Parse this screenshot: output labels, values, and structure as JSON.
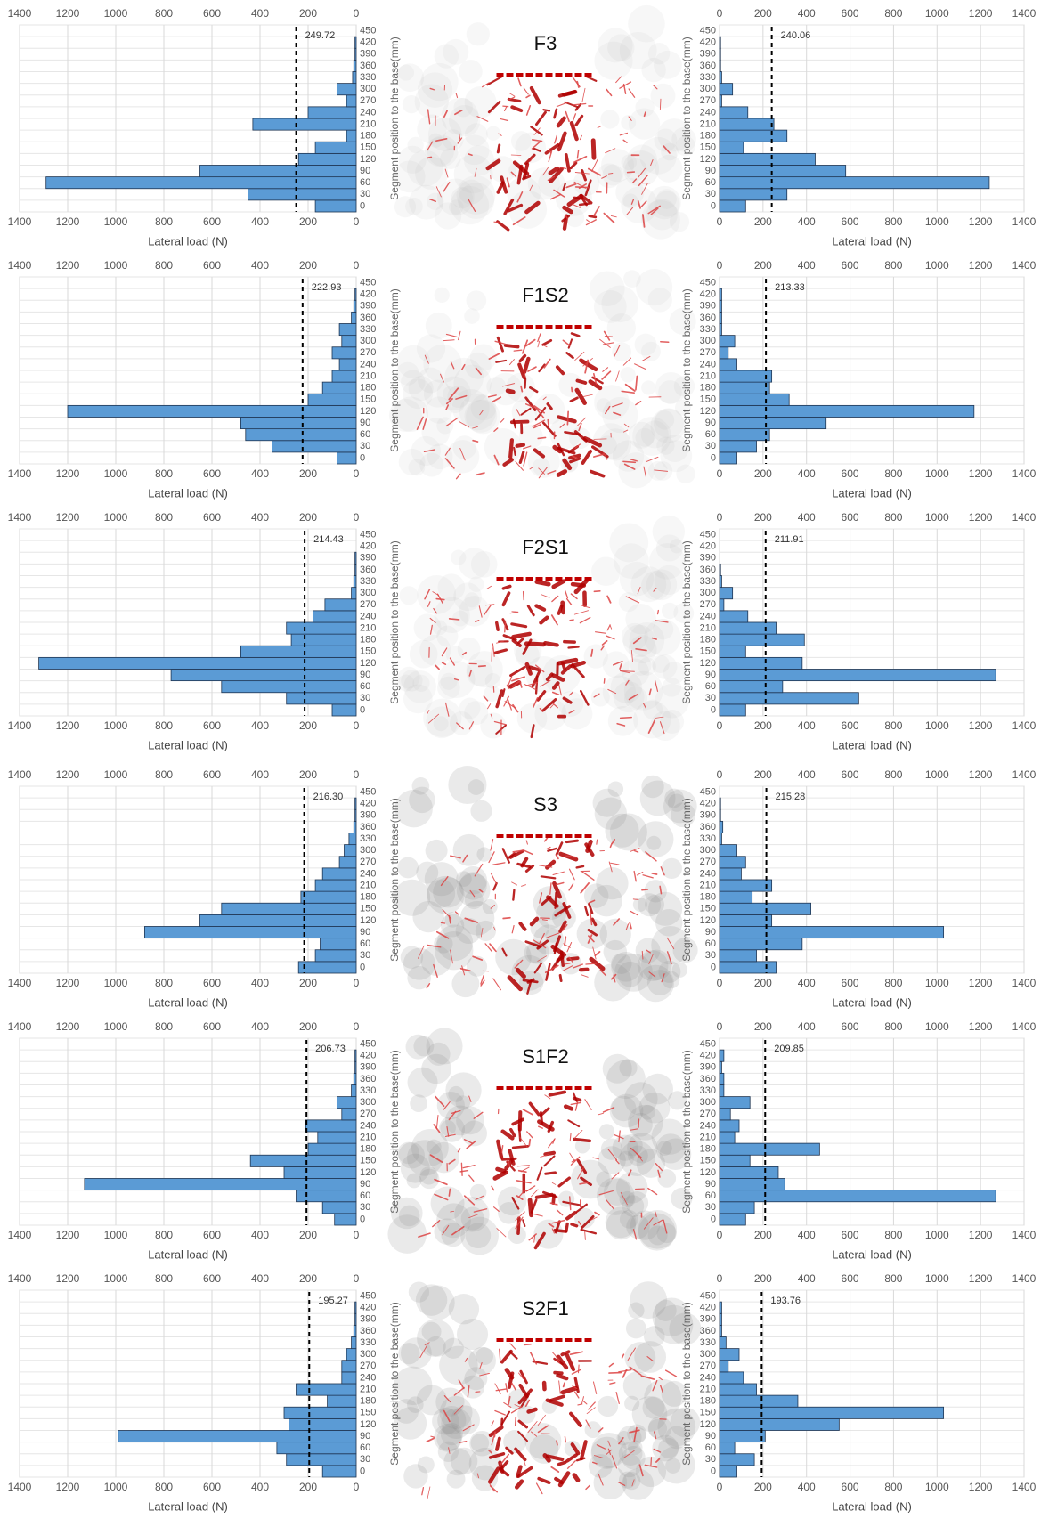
{
  "panels": [
    "F3",
    "F1S2",
    "F2S1",
    "S3",
    "S1F2",
    "S2F1"
  ],
  "chart_data": [
    {
      "type": "bar",
      "orientation": "horizontal",
      "reversed": true,
      "color": "#5b9bd5",
      "grid": true,
      "categories": [
        0,
        30,
        60,
        90,
        120,
        150,
        180,
        210,
        240,
        270,
        300,
        330,
        360,
        390,
        420,
        450
      ],
      "values": [
        170,
        450,
        1290,
        650,
        240,
        170,
        40,
        430,
        200,
        40,
        80,
        15,
        10,
        5,
        5,
        0
      ],
      "xlim": [
        0,
        1400
      ],
      "xticks": [
        0,
        200,
        400,
        600,
        800,
        1000,
        1200,
        1400
      ],
      "xlabel": "Lateral load (N)",
      "ylabel": "Segment position to the base(mm)",
      "mean_line": 249.72
    },
    {
      "type": "bar",
      "orientation": "horizontal",
      "reversed": false,
      "color": "#5b9bd5",
      "grid": true,
      "categories": [
        0,
        30,
        60,
        90,
        120,
        150,
        180,
        210,
        240,
        270,
        300,
        330,
        360,
        390,
        420,
        450
      ],
      "values": [
        120,
        310,
        1240,
        580,
        440,
        110,
        310,
        250,
        130,
        10,
        60,
        10,
        5,
        5,
        5,
        0
      ],
      "xlim": [
        0,
        1400
      ],
      "xticks": [
        0,
        200,
        400,
        600,
        800,
        1000,
        1200,
        1400
      ],
      "xlabel": "Lateral load (N)",
      "ylabel": "Segment position to the base(mm)",
      "mean_line": 240.06
    },
    {
      "type": "bar",
      "orientation": "horizontal",
      "reversed": true,
      "color": "#5b9bd5",
      "grid": true,
      "categories": [
        0,
        30,
        60,
        90,
        120,
        150,
        180,
        210,
        240,
        270,
        300,
        330,
        360,
        390,
        420,
        450
      ],
      "values": [
        80,
        350,
        460,
        480,
        1200,
        200,
        140,
        100,
        70,
        100,
        60,
        70,
        20,
        10,
        5,
        0
      ],
      "xlim": [
        0,
        1400
      ],
      "xticks": [
        0,
        200,
        400,
        600,
        800,
        1000,
        1200,
        1400
      ],
      "xlabel": "Lateral load (N)",
      "ylabel": "Segment position to the base(mm)",
      "mean_line": 222.93
    },
    {
      "type": "bar",
      "orientation": "horizontal",
      "reversed": false,
      "color": "#5b9bd5",
      "grid": true,
      "categories": [
        0,
        30,
        60,
        90,
        120,
        150,
        180,
        210,
        240,
        270,
        300,
        330,
        360,
        390,
        420,
        450
      ],
      "values": [
        80,
        170,
        230,
        490,
        1170,
        320,
        230,
        240,
        80,
        40,
        70,
        10,
        10,
        10,
        10,
        0
      ],
      "xlim": [
        0,
        1400
      ],
      "xticks": [
        0,
        200,
        400,
        600,
        800,
        1000,
        1200,
        1400
      ],
      "xlabel": "Lateral load (N)",
      "ylabel": "Segment position to the base(mm)",
      "mean_line": 213.33
    },
    {
      "type": "bar",
      "orientation": "horizontal",
      "reversed": true,
      "color": "#5b9bd5",
      "grid": true,
      "categories": [
        0,
        30,
        60,
        90,
        120,
        150,
        180,
        210,
        240,
        270,
        300,
        330,
        360,
        390,
        420,
        450
      ],
      "values": [
        100,
        290,
        560,
        770,
        1320,
        480,
        270,
        290,
        180,
        130,
        20,
        10,
        5,
        5,
        0,
        0
      ],
      "xlim": [
        0,
        1400
      ],
      "xticks": [
        0,
        200,
        400,
        600,
        800,
        1000,
        1200,
        1400
      ],
      "xlabel": "Lateral load (N)",
      "ylabel": "Segment position to the base(mm)",
      "mean_line": 214.43
    },
    {
      "type": "bar",
      "orientation": "horizontal",
      "reversed": false,
      "color": "#5b9bd5",
      "grid": true,
      "categories": [
        0,
        30,
        60,
        90,
        120,
        150,
        180,
        210,
        240,
        270,
        300,
        330,
        360,
        390,
        420,
        450
      ],
      "values": [
        120,
        640,
        290,
        1270,
        380,
        120,
        390,
        260,
        130,
        20,
        60,
        10,
        5,
        0,
        0,
        0
      ],
      "xlim": [
        0,
        1400
      ],
      "xticks": [
        0,
        200,
        400,
        600,
        800,
        1000,
        1200,
        1400
      ],
      "xlabel": "Lateral load (N)",
      "ylabel": "Segment position to the base(mm)",
      "mean_line": 211.91
    },
    {
      "type": "bar",
      "orientation": "horizontal",
      "reversed": true,
      "color": "#5b9bd5",
      "grid": true,
      "categories": [
        0,
        30,
        60,
        90,
        120,
        150,
        180,
        210,
        240,
        270,
        300,
        330,
        360,
        390,
        420,
        450
      ],
      "values": [
        240,
        170,
        150,
        880,
        650,
        560,
        230,
        170,
        140,
        70,
        50,
        30,
        10,
        5,
        5,
        0
      ],
      "xlim": [
        0,
        1400
      ],
      "xticks": [
        0,
        200,
        400,
        600,
        800,
        1000,
        1200,
        1400
      ],
      "xlabel": "Lateral load (N)",
      "ylabel": "Segment position to the base(mm)",
      "mean_line": {
        "value": 216.3,
        "label": "216.30"
      }
    },
    {
      "type": "bar",
      "orientation": "horizontal",
      "reversed": false,
      "color": "#5b9bd5",
      "grid": true,
      "categories": [
        0,
        30,
        60,
        90,
        120,
        150,
        180,
        210,
        240,
        270,
        300,
        330,
        360,
        390,
        420,
        450
      ],
      "values": [
        260,
        170,
        380,
        1030,
        240,
        420,
        150,
        240,
        100,
        120,
        80,
        10,
        15,
        5,
        5,
        0
      ],
      "xlim": [
        0,
        1400
      ],
      "xticks": [
        0,
        200,
        400,
        600,
        800,
        1000,
        1200,
        1400
      ],
      "xlabel": "Lateral load (N)",
      "ylabel": "Segment position to the base(mm)",
      "mean_line": 215.28
    },
    {
      "type": "bar",
      "orientation": "horizontal",
      "reversed": true,
      "color": "#5b9bd5",
      "grid": true,
      "categories": [
        0,
        30,
        60,
        90,
        120,
        150,
        180,
        210,
        240,
        270,
        300,
        330,
        360,
        390,
        420,
        450
      ],
      "values": [
        90,
        140,
        250,
        1130,
        300,
        440,
        200,
        160,
        210,
        60,
        80,
        20,
        10,
        5,
        5,
        0
      ],
      "xlim": [
        0,
        1400
      ],
      "xticks": [
        0,
        200,
        400,
        600,
        800,
        1000,
        1200,
        1400
      ],
      "xlabel": "Lateral load (N)",
      "ylabel": "Segment position to the base(mm)",
      "mean_line": 206.73
    },
    {
      "type": "bar",
      "orientation": "horizontal",
      "reversed": false,
      "color": "#5b9bd5",
      "grid": true,
      "categories": [
        0,
        30,
        60,
        90,
        120,
        150,
        180,
        210,
        240,
        270,
        300,
        330,
        360,
        390,
        420,
        450
      ],
      "values": [
        120,
        160,
        1270,
        300,
        270,
        140,
        460,
        70,
        90,
        50,
        140,
        20,
        20,
        10,
        20,
        0
      ],
      "xlim": [
        0,
        1400
      ],
      "xticks": [
        0,
        200,
        400,
        600,
        800,
        1000,
        1200,
        1400
      ],
      "xlabel": "Lateral load (N)",
      "ylabel": "Segment position to the base(mm)",
      "mean_line": 209.85
    },
    {
      "type": "bar",
      "orientation": "horizontal",
      "reversed": true,
      "color": "#5b9bd5",
      "grid": true,
      "categories": [
        0,
        30,
        60,
        90,
        120,
        150,
        180,
        210,
        240,
        270,
        300,
        330,
        360,
        390,
        420,
        450
      ],
      "values": [
        140,
        290,
        330,
        990,
        280,
        300,
        120,
        250,
        60,
        60,
        40,
        20,
        10,
        5,
        5,
        0
      ],
      "xlim": [
        0,
        1400
      ],
      "xticks": [
        0,
        200,
        400,
        600,
        800,
        1000,
        1200,
        1400
      ],
      "xlabel": "Lateral load (N)",
      "ylabel": "Segment position to the base(mm)",
      "mean_line": 195.27
    },
    {
      "type": "bar",
      "orientation": "horizontal",
      "reversed": false,
      "color": "#5b9bd5",
      "grid": true,
      "categories": [
        0,
        30,
        60,
        90,
        120,
        150,
        180,
        210,
        240,
        270,
        300,
        330,
        360,
        390,
        420,
        450
      ],
      "values": [
        80,
        160,
        70,
        210,
        550,
        1030,
        360,
        170,
        110,
        40,
        90,
        30,
        10,
        10,
        10,
        0
      ],
      "xlim": [
        0,
        1400
      ],
      "xticks": [
        0,
        200,
        400,
        600,
        800,
        1000,
        1200,
        1400
      ],
      "xlabel": "Lateral load (N)",
      "ylabel": "Segment position to the base(mm)",
      "mean_line": 193.76
    }
  ]
}
